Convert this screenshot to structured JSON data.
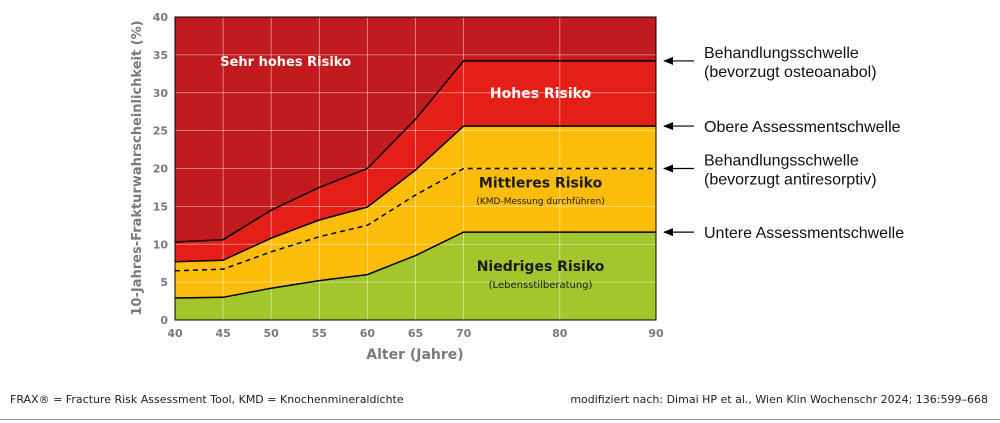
{
  "chart_data": {
    "type": "area",
    "title": "",
    "xlabel": "Alter (Jahre)",
    "ylabel": "10-Jahres-Frakturwahrscheinlichkeit (%)",
    "xlim": [
      40,
      90
    ],
    "ylim": [
      0,
      40
    ],
    "grid": true,
    "x_ticks": [
      "40",
      "45",
      "50",
      "55",
      "60",
      "65",
      "70",
      "80",
      "90"
    ],
    "y_ticks": [
      "0",
      "5",
      "10",
      "15",
      "20",
      "25",
      "30",
      "35",
      "40"
    ],
    "x": [
      40,
      45,
      50,
      55,
      60,
      65,
      70,
      80,
      90
    ],
    "thresholds": [
      {
        "label": "Untere Assessmentschwelle",
        "label_line2": "",
        "style": "solid",
        "values": [
          2.9,
          3.0,
          4.2,
          5.2,
          6.0,
          8.5,
          11.6,
          11.6,
          11.6
        ]
      },
      {
        "label": "Behandlungsschwelle",
        "label_line2": "(bevorzugt antiresorptiv)",
        "style": "dashed",
        "values": [
          6.5,
          6.7,
          9.0,
          11.0,
          12.5,
          16.5,
          20.0,
          20.0,
          20.0
        ]
      },
      {
        "label": "Obere Assessmentschwelle",
        "label_line2": "",
        "style": "solid",
        "values": [
          7.7,
          7.9,
          10.8,
          13.2,
          14.9,
          19.8,
          25.6,
          25.6,
          25.6
        ]
      },
      {
        "label": "Behandlungsschwelle",
        "label_line2": "(bevorzugt osteoanabol)",
        "style": "solid",
        "values": [
          10.3,
          10.6,
          14.5,
          17.5,
          20.0,
          26.5,
          34.2,
          34.2,
          34.2
        ]
      }
    ],
    "zones": [
      {
        "label": "Niedriges Risiko",
        "sublabel": "(Lebensstilberatung)",
        "color": "#a2c62c"
      },
      {
        "label": "Mittleres Risiko",
        "sublabel": "(KMD-Messung durchführen)",
        "color": "#fbbd0a"
      },
      {
        "label": "Hohes Risiko",
        "sublabel": "",
        "color": "#e41f18"
      },
      {
        "label": "Sehr hohes Risiko",
        "sublabel": "",
        "color": "#c11a1f"
      }
    ]
  },
  "footer": {
    "left": "FRAX® = Fracture Risk Assessment Tool, KMD = Knochenmineraldichte",
    "right": "modifiziert nach: Dimai HP et al., Wien Klin Wochenschr 2024; 136:599–668"
  }
}
